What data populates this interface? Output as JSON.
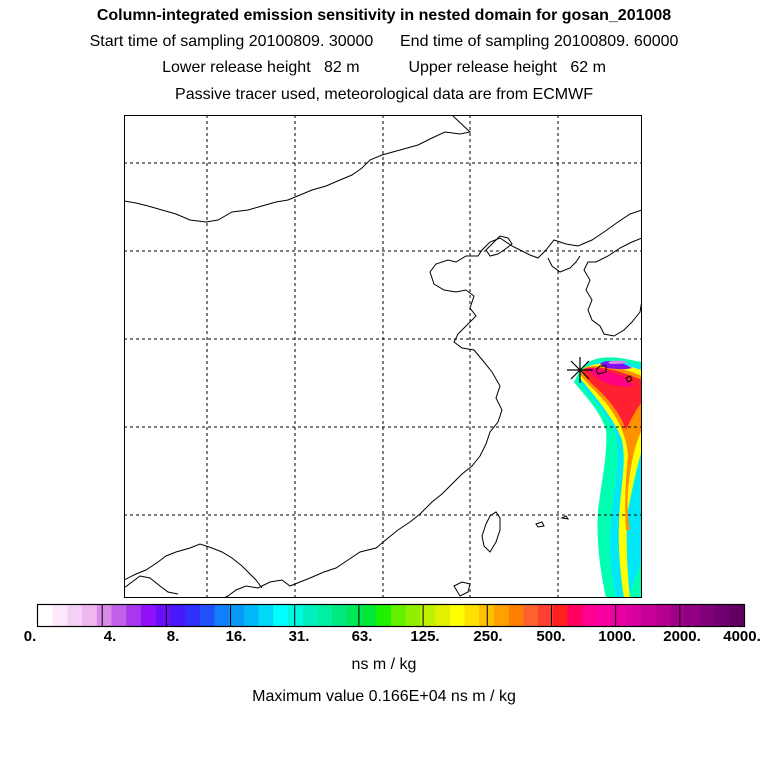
{
  "header": {
    "title": "Column-integrated emission sensitivity in nested domain for gosan_201008",
    "start_label": "Start time of sampling 20100809. 30000",
    "end_label": "End time of sampling 20100809. 60000",
    "lower_label": "Lower release height   82 m",
    "upper_label": "Upper release height   62 m",
    "note": "Passive tracer used, meteorological data are from ECMWF"
  },
  "colorbar": {
    "labels": [
      "0.",
      "4.",
      "8.",
      "16.",
      "31.",
      "63.",
      "125.",
      "250.",
      "500.",
      "1000.",
      "2000.",
      "4000."
    ],
    "colors": [
      "#ffffff",
      "#fbe8fb",
      "#f5d0f5",
      "#eeb8ee",
      "#d88ae8",
      "#c060e8",
      "#a838f0",
      "#9010f8",
      "#6a10f8",
      "#4818f8",
      "#3030f8",
      "#2050f8",
      "#1080f8",
      "#0898f8",
      "#00b8f8",
      "#00d8f8",
      "#00ffff",
      "#00f8e0",
      "#00f0c0",
      "#00f0a0",
      "#00e880",
      "#00e858",
      "#00e838",
      "#20f000",
      "#60f000",
      "#90f000",
      "#c0f000",
      "#e0f000",
      "#ffff00",
      "#ffe000",
      "#ffc000",
      "#ffa000",
      "#ff8000",
      "#ff6030",
      "#ff4030",
      "#ff2020",
      "#ff0060",
      "#ff0090",
      "#f800a0",
      "#e800a0",
      "#d800a0",
      "#c80098",
      "#b80090",
      "#a00088",
      "#900080",
      "#800078",
      "#700070",
      "#600060"
    ],
    "units": "ns m / kg"
  },
  "max_value_text": "Maximum value  0.166E+04 ns m / kg"
}
